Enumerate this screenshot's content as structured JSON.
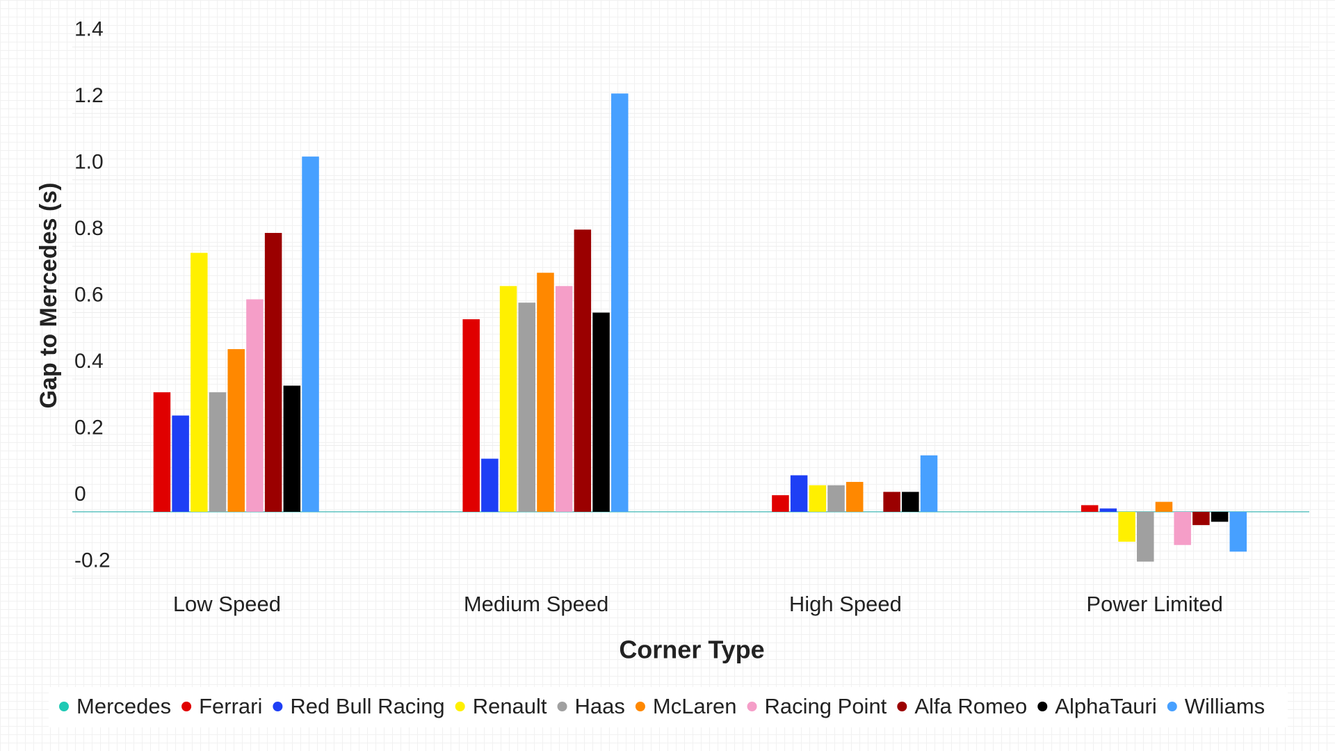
{
  "chart_data": {
    "type": "bar",
    "x_label": "Corner Type",
    "y_label": "Gap to Mercedes (s)",
    "categories": [
      "Low Speed",
      "Medium Speed",
      "High Speed",
      "Power Limited"
    ],
    "series": [
      {
        "name": "Mercedes",
        "color": "#1fc9b4",
        "values": [
          0,
          0,
          0,
          0
        ]
      },
      {
        "name": "Ferrari",
        "color": "#e00000",
        "values": [
          0.36,
          0.58,
          0.05,
          0.02
        ]
      },
      {
        "name": "Red Bull Racing",
        "color": "#1e3ff5",
        "values": [
          0.29,
          0.16,
          0.11,
          0.01
        ]
      },
      {
        "name": "Renault",
        "color": "#fff000",
        "values": [
          0.78,
          0.68,
          0.08,
          -0.09
        ]
      },
      {
        "name": "Haas",
        "color": "#a0a0a0",
        "values": [
          0.36,
          0.63,
          0.08,
          -0.15
        ]
      },
      {
        "name": "McLaren",
        "color": "#ff8800",
        "values": [
          0.49,
          0.72,
          0.09,
          0.03
        ]
      },
      {
        "name": "Racing Point",
        "color": "#f59ec8",
        "values": [
          0.64,
          0.68,
          0,
          -0.1
        ]
      },
      {
        "name": "Alfa Romeo",
        "color": "#9b0000",
        "values": [
          0.84,
          0.85,
          0.06,
          -0.04
        ]
      },
      {
        "name": "AlphaTauri",
        "color": "#000000",
        "values": [
          0.38,
          0.6,
          0.06,
          -0.03
        ]
      },
      {
        "name": "Williams",
        "color": "#47a0ff",
        "values": [
          1.07,
          1.26,
          0.17,
          -0.12
        ]
      }
    ],
    "ylim": [
      -0.2,
      1.4
    ],
    "yticks": [
      -0.2,
      0,
      0.2,
      0.4,
      0.6,
      0.8,
      {
        "value": 1.0,
        "label": "1.0"
      },
      1.2,
      1.4
    ],
    "grid": true,
    "zero_line_color": "#5cc3c0",
    "legend": "bottom"
  }
}
